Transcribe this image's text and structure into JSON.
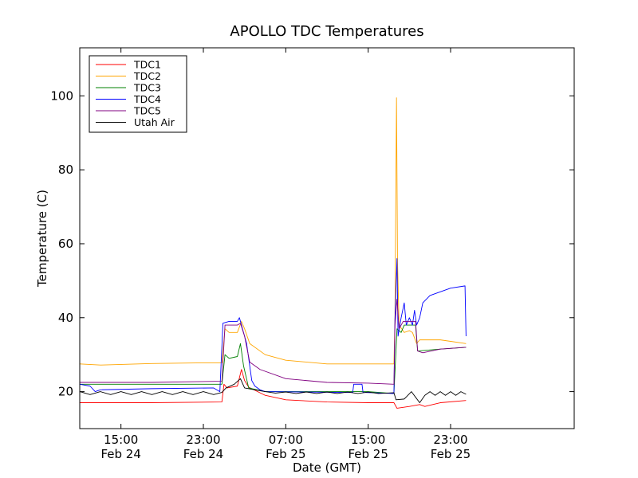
{
  "chart_data": {
    "type": "line",
    "title": "APOLLO TDC Temperatures",
    "xlabel": "Date (GMT)",
    "ylabel": "Temperature (C)",
    "xlim": [
      11,
      59
    ],
    "ylim": [
      10,
      113
    ],
    "x_unit": "hours since Feb 24 00:00 GMT",
    "x_ticks": [
      {
        "x": 15,
        "time": "15:00",
        "date": "Feb 24"
      },
      {
        "x": 23,
        "time": "23:00",
        "date": "Feb 24"
      },
      {
        "x": 31,
        "time": "07:00",
        "date": "Feb 25"
      },
      {
        "x": 39,
        "time": "15:00",
        "date": "Feb 25"
      },
      {
        "x": 47,
        "time": "23:00",
        "date": "Feb 25"
      }
    ],
    "y_ticks": [
      20,
      40,
      60,
      80,
      100
    ],
    "legend": "top-left",
    "grid": false,
    "series": [
      {
        "name": "TDC1",
        "color": "#ff0000",
        "points": [
          [
            11,
            17.0
          ],
          [
            18,
            17.0
          ],
          [
            24.8,
            17.2
          ],
          [
            25.0,
            22.0
          ],
          [
            25.3,
            21.0
          ],
          [
            26.3,
            21.5
          ],
          [
            26.7,
            26.0
          ],
          [
            27.0,
            23.0
          ],
          [
            27.4,
            21.2
          ],
          [
            29,
            19.0
          ],
          [
            31,
            17.8
          ],
          [
            35,
            17.2
          ],
          [
            39,
            17.0
          ],
          [
            41.5,
            17.0
          ],
          [
            41.8,
            15.5
          ],
          [
            43,
            16.0
          ],
          [
            44,
            16.5
          ],
          [
            44.5,
            16.0
          ],
          [
            46,
            17.0
          ],
          [
            48.5,
            17.6
          ]
        ]
      },
      {
        "name": "TDC2",
        "color": "#ffa500",
        "points": [
          [
            11,
            27.5
          ],
          [
            13,
            27.2
          ],
          [
            18,
            27.6
          ],
          [
            23,
            27.8
          ],
          [
            24.8,
            27.8
          ],
          [
            25.1,
            37.0
          ],
          [
            25.5,
            36.0
          ],
          [
            26.3,
            36.0
          ],
          [
            26.7,
            39.0
          ],
          [
            27.0,
            37.0
          ],
          [
            27.5,
            33.0
          ],
          [
            29,
            30.0
          ],
          [
            31,
            28.5
          ],
          [
            35,
            27.5
          ],
          [
            39,
            27.5
          ],
          [
            41.5,
            27.5
          ],
          [
            41.6,
            40.0
          ],
          [
            41.75,
            99.5
          ],
          [
            41.85,
            55.0
          ],
          [
            42.0,
            38.0
          ],
          [
            42.5,
            36.0
          ],
          [
            43,
            36.5
          ],
          [
            43.3,
            36.0
          ],
          [
            43.7,
            33.0
          ],
          [
            44,
            34.0
          ],
          [
            46,
            34.0
          ],
          [
            48,
            33.2
          ],
          [
            48.5,
            33.0
          ]
        ]
      },
      {
        "name": "TDC3",
        "color": "#008000",
        "points": [
          [
            11,
            22.0
          ],
          [
            18,
            22.0
          ],
          [
            24.8,
            22.0
          ],
          [
            25.1,
            30.0
          ],
          [
            25.5,
            29.0
          ],
          [
            26.3,
            29.5
          ],
          [
            26.6,
            33.0
          ],
          [
            26.9,
            27.0
          ],
          [
            27.4,
            21.0
          ],
          [
            29,
            20.0
          ],
          [
            35,
            20.0
          ],
          [
            39,
            20.0
          ],
          [
            41.5,
            19.5
          ],
          [
            41.8,
            37.0
          ],
          [
            42.2,
            36.0
          ],
          [
            42.5,
            38.0
          ],
          [
            43.6,
            38.0
          ],
          [
            43.8,
            31.0
          ],
          [
            46,
            31.5
          ],
          [
            48.5,
            32.0
          ]
        ]
      },
      {
        "name": "TDC4",
        "color": "#0000ff",
        "points": [
          [
            11,
            22.0
          ],
          [
            12,
            21.5
          ],
          [
            12.5,
            20.0
          ],
          [
            13,
            20.5
          ],
          [
            18,
            20.8
          ],
          [
            24,
            21.0
          ],
          [
            24.6,
            20.0
          ],
          [
            24.9,
            38.5
          ],
          [
            25.5,
            39.0
          ],
          [
            26.3,
            39.0
          ],
          [
            26.5,
            40.0
          ],
          [
            26.8,
            37.0
          ],
          [
            27.2,
            33.0
          ],
          [
            27.7,
            23.0
          ],
          [
            28,
            21.5
          ],
          [
            28.5,
            20.5
          ],
          [
            29,
            20.0
          ],
          [
            36.5,
            19.8
          ],
          [
            37.5,
            19.8
          ],
          [
            37.6,
            22.0
          ],
          [
            38.4,
            22.0
          ],
          [
            38.5,
            19.8
          ],
          [
            41.5,
            19.5
          ],
          [
            41.6,
            39.5
          ],
          [
            41.8,
            56.0
          ],
          [
            41.9,
            35.0
          ],
          [
            42.2,
            40.0
          ],
          [
            42.5,
            44.0
          ],
          [
            42.7,
            38.0
          ],
          [
            43.0,
            40.0
          ],
          [
            43.3,
            38.0
          ],
          [
            43.5,
            42.0
          ],
          [
            43.7,
            38.0
          ],
          [
            44.0,
            40.0
          ],
          [
            44.3,
            44.0
          ],
          [
            45.0,
            46.0
          ],
          [
            47,
            48.0
          ],
          [
            48.4,
            48.6
          ],
          [
            48.5,
            35.0
          ]
        ]
      },
      {
        "name": "TDC5",
        "color": "#800080",
        "points": [
          [
            11,
            22.5
          ],
          [
            18,
            22.5
          ],
          [
            24.8,
            22.8
          ],
          [
            25.1,
            38.0
          ],
          [
            25.5,
            38.0
          ],
          [
            26.3,
            38.0
          ],
          [
            26.6,
            38.5
          ],
          [
            27,
            35.0
          ],
          [
            27.5,
            28.0
          ],
          [
            28.5,
            26.0
          ],
          [
            31,
            23.5
          ],
          [
            35,
            22.5
          ],
          [
            39,
            22.3
          ],
          [
            41.5,
            22.0
          ],
          [
            41.6,
            38.0
          ],
          [
            41.8,
            45.0
          ],
          [
            42.0,
            37.0
          ],
          [
            42.4,
            39.0
          ],
          [
            43.6,
            39.0
          ],
          [
            43.8,
            31.0
          ],
          [
            44.3,
            30.5
          ],
          [
            46,
            31.5
          ],
          [
            48.5,
            32.0
          ]
        ]
      },
      {
        "name": "Utah Air",
        "color": "#000000",
        "points": [
          [
            11,
            20.0
          ],
          [
            12,
            19.2
          ],
          [
            13,
            20.0
          ],
          [
            14,
            19.2
          ],
          [
            15,
            20.0
          ],
          [
            16,
            19.2
          ],
          [
            17,
            20.0
          ],
          [
            18,
            19.2
          ],
          [
            19,
            20.0
          ],
          [
            20,
            19.2
          ],
          [
            21,
            20.0
          ],
          [
            22,
            19.2
          ],
          [
            23,
            20.0
          ],
          [
            24,
            19.2
          ],
          [
            24.8,
            19.8
          ],
          [
            25.2,
            21.0
          ],
          [
            26,
            22.0
          ],
          [
            26.6,
            23.5
          ],
          [
            27.0,
            21.0
          ],
          [
            28,
            20.5
          ],
          [
            29,
            20.0
          ],
          [
            30,
            19.6
          ],
          [
            31,
            19.9
          ],
          [
            32,
            19.5
          ],
          [
            33,
            19.9
          ],
          [
            34,
            19.5
          ],
          [
            35,
            19.9
          ],
          [
            36,
            19.5
          ],
          [
            37,
            19.9
          ],
          [
            38,
            19.5
          ],
          [
            39,
            19.9
          ],
          [
            40,
            19.5
          ],
          [
            41.5,
            19.7
          ],
          [
            41.7,
            17.8
          ],
          [
            42.5,
            18.0
          ],
          [
            43.2,
            20.0
          ],
          [
            43.6,
            18.5
          ],
          [
            44,
            17.0
          ],
          [
            44.5,
            19.0
          ],
          [
            45,
            20.0
          ],
          [
            45.5,
            19.0
          ],
          [
            46,
            20.0
          ],
          [
            46.5,
            19.0
          ],
          [
            47,
            20.0
          ],
          [
            47.5,
            19.0
          ],
          [
            48,
            20.0
          ],
          [
            48.5,
            19.3
          ]
        ]
      }
    ]
  }
}
